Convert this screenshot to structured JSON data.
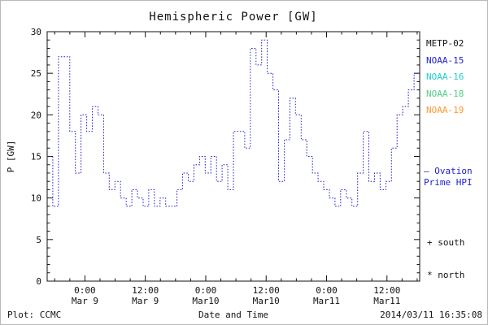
{
  "colors": {
    "black": "#111111",
    "blue": "#2222cc",
    "cyan": "#22cccc",
    "green": "#55cc88",
    "orange": "#ff9933",
    "axis": "#111111"
  },
  "legend": {
    "satellites": [
      {
        "label": "METP-02",
        "color": "#111111"
      },
      {
        "label": "NOAA-15",
        "color": "#2222cc"
      },
      {
        "label": "NOAA-16",
        "color": "#22cccc"
      },
      {
        "label": "NOAA-18",
        "color": "#55cc88"
      },
      {
        "label": "NOAA-19",
        "color": "#ff9933"
      }
    ],
    "ovation": {
      "lines": [
        "— Ovation",
        "Prime HPI"
      ],
      "color": "#2222cc"
    },
    "south_label": "+ south",
    "north_label": "* north"
  },
  "footer": {
    "plot_credit": "Plot: CCMC",
    "timestamp": "2014/03/11 16:35:08"
  },
  "chart_data": {
    "type": "line",
    "style": "dotted-step",
    "title": "Hemispheric Power [GW]",
    "xlabel": "Date and Time",
    "ylabel": "P [GW]",
    "ylim": [
      0,
      30
    ],
    "yticks": [
      0,
      5,
      10,
      15,
      20,
      25,
      30
    ],
    "y_minor_step": 1,
    "x_range_hours": [
      0,
      74
    ],
    "x_minor_step": 3,
    "grid": false,
    "legend_position": "right",
    "xticks": [
      {
        "hours": 7.5,
        "time": "0:00",
        "date": "Mar 9"
      },
      {
        "hours": 19.5,
        "time": "12:00",
        "date": "Mar 9"
      },
      {
        "hours": 31.5,
        "time": "0:00",
        "date": "Mar10"
      },
      {
        "hours": 43.5,
        "time": "12:00",
        "date": "Mar10"
      },
      {
        "hours": 55.5,
        "time": "0:00",
        "date": "Mar11"
      },
      {
        "hours": 67.5,
        "time": "12:00",
        "date": "Mar11"
      }
    ],
    "series": [
      {
        "name": "Ovation Prime HPI (NOAA-15)",
        "color": "#2222cc",
        "units": "GW",
        "values": [
          15,
          9,
          27,
          27,
          18,
          13,
          20,
          18,
          21,
          20,
          13,
          11,
          12,
          10,
          9,
          11,
          10,
          9,
          11,
          9,
          10,
          9,
          9,
          11,
          13,
          12,
          14,
          15,
          13,
          15,
          12,
          14,
          11,
          18,
          18,
          16,
          28,
          26,
          29,
          25,
          23,
          12,
          17,
          22,
          20,
          17,
          15,
          13,
          12,
          11,
          10,
          9,
          11,
          10,
          9,
          13,
          18,
          12,
          13,
          11,
          12,
          16,
          20,
          21,
          23,
          25
        ]
      }
    ]
  }
}
